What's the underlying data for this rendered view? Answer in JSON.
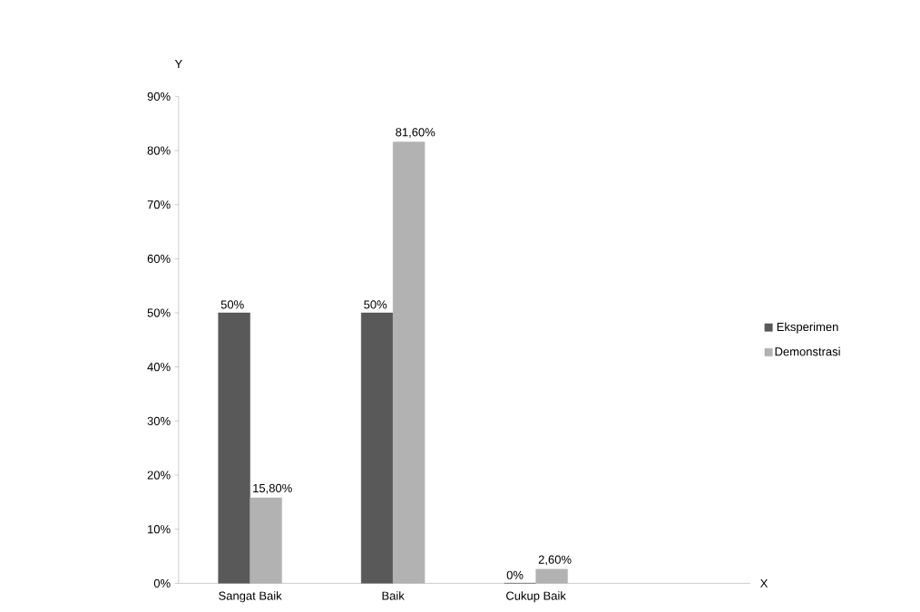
{
  "chart_data": {
    "type": "bar",
    "xlabel": "X",
    "ylabel": "Y",
    "categories": [
      "Sangat Baik",
      "Baik",
      "Cukup Baik",
      null
    ],
    "series": [
      {
        "name": "Eksperimen",
        "color": "#595959",
        "values": [
          50,
          50,
          0,
          null
        ],
        "value_labels": [
          "50%",
          "50%",
          "0%",
          null
        ]
      },
      {
        "name": "Demonstrasi",
        "color": "#b2b2b2",
        "values": [
          15.8,
          81.6,
          2.6,
          null
        ],
        "value_labels": [
          "15,80%",
          "81,60%",
          "2,60%",
          null
        ]
      }
    ],
    "ylim": [
      0,
      90
    ],
    "yticks": [
      {
        "value": 0,
        "label": "0%"
      },
      {
        "value": 10,
        "label": "10%"
      },
      {
        "value": 20,
        "label": "20%"
      },
      {
        "value": 30,
        "label": "30%"
      },
      {
        "value": 40,
        "label": "40%"
      },
      {
        "value": 50,
        "label": "50%"
      },
      {
        "value": 60,
        "label": "60%"
      },
      {
        "value": 70,
        "label": "70%"
      },
      {
        "value": 80,
        "label": "80%"
      },
      {
        "value": 90,
        "label": "90%"
      }
    ],
    "legend": "right",
    "grid": false
  }
}
